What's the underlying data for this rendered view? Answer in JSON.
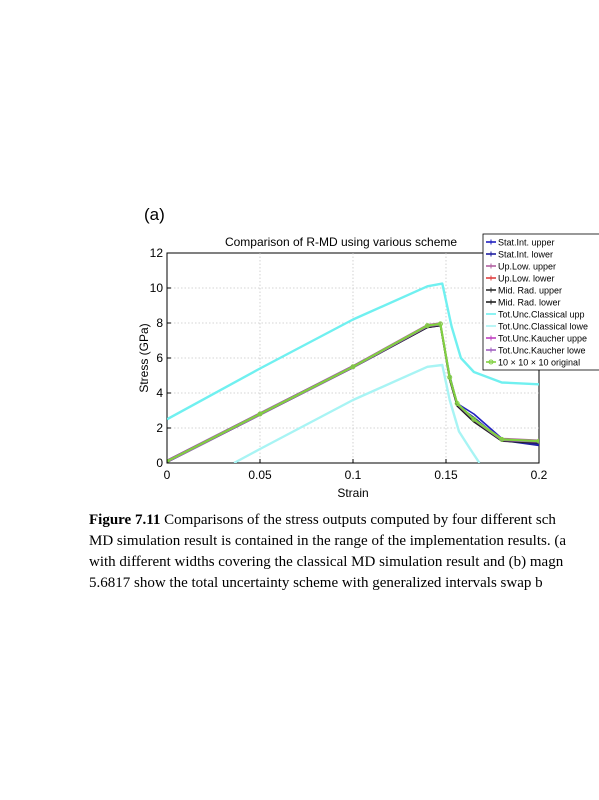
{
  "panel_label": "(a)",
  "caption": {
    "figure_label": "Figure 7.11",
    "line1_rest": "  Comparisons of the stress outputs computed by four different sch",
    "line2": "MD simulation result is contained in the range of the implementation results. (a",
    "line3": "with different widths covering the classical MD simulation result and (b) magn",
    "line4": " 5.6817 show the total uncertainty scheme with generalized intervals swap b"
  },
  "chart_data": {
    "type": "line",
    "title": "Comparison of R-MD using various scheme",
    "xlabel": "Strain",
    "ylabel": "Stress (GPa)",
    "xlim": [
      0,
      0.2
    ],
    "ylim": [
      0,
      12
    ],
    "xticks": [
      0,
      0.05,
      0.1,
      0.15,
      0.2
    ],
    "xtick_labels": [
      "0",
      "0.05",
      "0.1",
      "0.15",
      "0.2"
    ],
    "yticks": [
      0,
      2,
      4,
      6,
      8,
      10,
      12
    ],
    "ytick_labels": [
      "0",
      "2",
      "4",
      "6",
      "8",
      "10",
      "12"
    ],
    "grid": true,
    "legend_position": "top-right",
    "series": [
      {
        "name": "Stat.Int. upper",
        "color": "#2020c0",
        "marker": "+",
        "x": [
          0,
          0.05,
          0.1,
          0.14,
          0.147,
          0.152,
          0.156,
          0.165,
          0.18,
          0.2
        ],
        "y": [
          0.15,
          2.85,
          5.55,
          7.85,
          7.95,
          5.0,
          3.4,
          2.8,
          1.4,
          1.05
        ]
      },
      {
        "name": "Stat.Int. lower",
        "color": "#2020a0",
        "marker": "+",
        "x": [
          0,
          0.05,
          0.1,
          0.14,
          0.147,
          0.152,
          0.156,
          0.165,
          0.18,
          0.2
        ],
        "y": [
          0.05,
          2.75,
          5.45,
          7.75,
          7.85,
          4.9,
          3.3,
          2.6,
          1.3,
          1.0
        ]
      },
      {
        "name": "Up.Low. upper",
        "color": "#b060a0",
        "marker": "+",
        "x": [
          0,
          0.05,
          0.1,
          0.14,
          0.147,
          0.152,
          0.156,
          0.165,
          0.18,
          0.2
        ],
        "y": [
          0.15,
          2.85,
          5.55,
          7.9,
          8.0,
          4.9,
          3.4,
          2.5,
          1.4,
          1.3
        ]
      },
      {
        "name": "Up.Low. lower",
        "color": "#e04040",
        "marker": "+",
        "x": [
          0,
          0.05,
          0.1,
          0.14,
          0.147,
          0.152,
          0.156,
          0.165,
          0.18,
          0.2
        ],
        "y": [
          0.1,
          2.8,
          5.5,
          7.8,
          7.9,
          4.8,
          3.3,
          2.4,
          1.3,
          1.2
        ]
      },
      {
        "name": "Mid. Rad. upper",
        "color": "#303030",
        "marker": "+",
        "x": [
          0,
          0.05,
          0.1,
          0.14,
          0.147,
          0.152,
          0.156,
          0.165,
          0.18,
          0.2
        ],
        "y": [
          0.1,
          2.8,
          5.5,
          7.85,
          7.95,
          4.85,
          3.35,
          2.45,
          1.35,
          1.25
        ]
      },
      {
        "name": "Mid. Rad. lower",
        "color": "#202020",
        "marker": "+",
        "x": [
          0,
          0.05,
          0.1,
          0.14,
          0.147,
          0.152,
          0.156,
          0.165,
          0.18,
          0.2
        ],
        "y": [
          0.05,
          2.75,
          5.45,
          7.75,
          7.85,
          4.75,
          3.25,
          2.35,
          1.25,
          1.15
        ]
      },
      {
        "name": "Tot.Unc.Classical upp",
        "color": "#70f0f0",
        "marker": "none",
        "x": [
          0,
          0.05,
          0.1,
          0.14,
          0.148,
          0.153,
          0.158,
          0.165,
          0.18,
          0.2
        ],
        "y": [
          2.5,
          5.4,
          8.2,
          10.1,
          10.25,
          7.8,
          6.0,
          5.2,
          4.6,
          4.5
        ]
      },
      {
        "name": "Tot.Unc.Classical lowe",
        "color": "#a8f4f4",
        "marker": "none",
        "x": [
          0.036,
          0.05,
          0.1,
          0.14,
          0.148,
          0.152,
          0.157,
          0.163,
          0.168
        ],
        "y": [
          0,
          0.8,
          3.6,
          5.5,
          5.6,
          3.6,
          1.8,
          0.8,
          0
        ]
      },
      {
        "name": "Tot.Unc.Kaucher uppe",
        "color": "#c040c0",
        "marker": "+",
        "x": [
          0,
          0.05,
          0.1,
          0.14,
          0.147,
          0.152,
          0.156,
          0.165,
          0.18,
          0.2
        ],
        "y": [
          0.1,
          2.8,
          5.5,
          7.85,
          7.95,
          4.9,
          3.4,
          2.5,
          1.35,
          1.25
        ]
      },
      {
        "name": "Tot.Unc.Kaucher lowe",
        "color": "#a060c0",
        "marker": "+",
        "x": [
          0,
          0.05,
          0.1,
          0.14,
          0.147,
          0.152,
          0.156,
          0.165,
          0.18,
          0.2
        ],
        "y": [
          0.05,
          2.75,
          5.45,
          7.8,
          7.9,
          4.85,
          3.35,
          2.45,
          1.3,
          1.2
        ]
      },
      {
        "name": "10 × 10 × 10 original",
        "color": "#80d040",
        "marker": "o",
        "x": [
          0,
          0.05,
          0.1,
          0.14,
          0.147,
          0.152,
          0.156,
          0.165,
          0.18,
          0.2
        ],
        "y": [
          0.1,
          2.8,
          5.5,
          7.85,
          7.95,
          4.9,
          3.4,
          2.5,
          1.35,
          1.25
        ]
      }
    ]
  }
}
